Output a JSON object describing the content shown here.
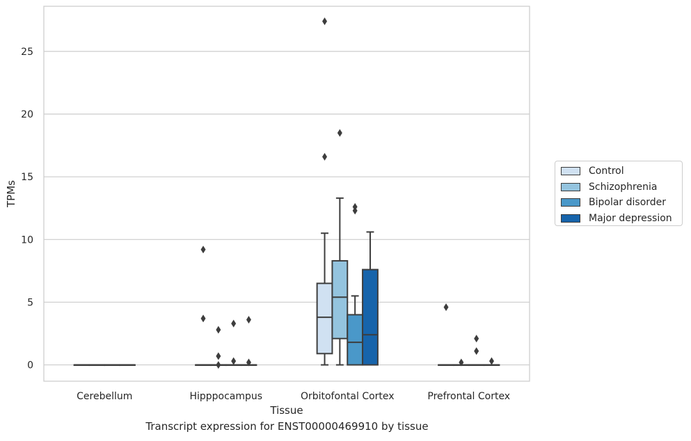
{
  "chart_data": {
    "type": "box",
    "title": "",
    "caption": "Transcript expression for ENST00000469910 by tissue",
    "xlabel": "Tissue",
    "ylabel": "TPMs",
    "ylim": [
      -1.3,
      28.6
    ],
    "yticks": [
      0,
      5,
      10,
      15,
      20,
      25
    ],
    "grid": "horizontal",
    "legend_position": "right",
    "categories": [
      "Cerebellum",
      "Hipppocampus",
      "Orbitofontal Cortex",
      "Prefrontal Cortex"
    ],
    "series": [
      {
        "name": "Control",
        "color": "#d0e1f2",
        "boxes": [
          {
            "min": 0,
            "q1": 0,
            "median": 0,
            "q3": 0,
            "max": 0,
            "outliers": []
          },
          {
            "min": 0,
            "q1": 0,
            "median": 0,
            "q3": 0,
            "max": 0,
            "outliers": [
              9.2,
              3.7
            ]
          },
          {
            "min": 0,
            "q1": 0.9,
            "median": 3.8,
            "q3": 6.5,
            "max": 10.5,
            "outliers": [
              16.6,
              27.4
            ]
          },
          {
            "min": 0,
            "q1": 0,
            "median": 0,
            "q3": 0,
            "max": 0,
            "outliers": [
              4.6
            ]
          }
        ]
      },
      {
        "name": "Schizophrenia",
        "color": "#94c4df",
        "boxes": [
          {
            "min": 0,
            "q1": 0,
            "median": 0,
            "q3": 0,
            "max": 0,
            "outliers": []
          },
          {
            "min": 0,
            "q1": 0,
            "median": 0,
            "q3": 0,
            "max": 0,
            "outliers": [
              2.8,
              0.7,
              0.0
            ]
          },
          {
            "min": 0,
            "q1": 2.1,
            "median": 5.4,
            "q3": 8.3,
            "max": 13.3,
            "outliers": [
              18.5
            ]
          },
          {
            "min": 0,
            "q1": 0,
            "median": 0,
            "q3": 0,
            "max": 0,
            "outliers": [
              0.2
            ]
          }
        ]
      },
      {
        "name": "Bipolar disorder",
        "color": "#4a98c9",
        "boxes": [
          {
            "min": 0,
            "q1": 0,
            "median": 0,
            "q3": 0,
            "max": 0,
            "outliers": []
          },
          {
            "min": 0,
            "q1": 0,
            "median": 0,
            "q3": 0,
            "max": 0,
            "outliers": [
              3.3,
              0.3
            ]
          },
          {
            "min": 0,
            "q1": 0,
            "median": 1.8,
            "q3": 4.0,
            "max": 5.5,
            "outliers": [
              12.6,
              12.3
            ]
          },
          {
            "min": 0,
            "q1": 0,
            "median": 0,
            "q3": 0,
            "max": 0,
            "outliers": [
              2.1,
              1.1
            ]
          }
        ]
      },
      {
        "name": "Major depression",
        "color": "#1764ab",
        "boxes": [
          {
            "min": 0,
            "q1": 0,
            "median": 0,
            "q3": 0,
            "max": 0,
            "outliers": []
          },
          {
            "min": 0,
            "q1": 0,
            "median": 0,
            "q3": 0,
            "max": 0,
            "outliers": [
              3.6,
              0.2
            ]
          },
          {
            "min": 0,
            "q1": 0,
            "median": 2.4,
            "q3": 7.6,
            "max": 10.6,
            "outliers": []
          },
          {
            "min": 0,
            "q1": 0,
            "median": 0,
            "q3": 0,
            "max": 0,
            "outliers": [
              0.3
            ]
          }
        ]
      }
    ]
  }
}
